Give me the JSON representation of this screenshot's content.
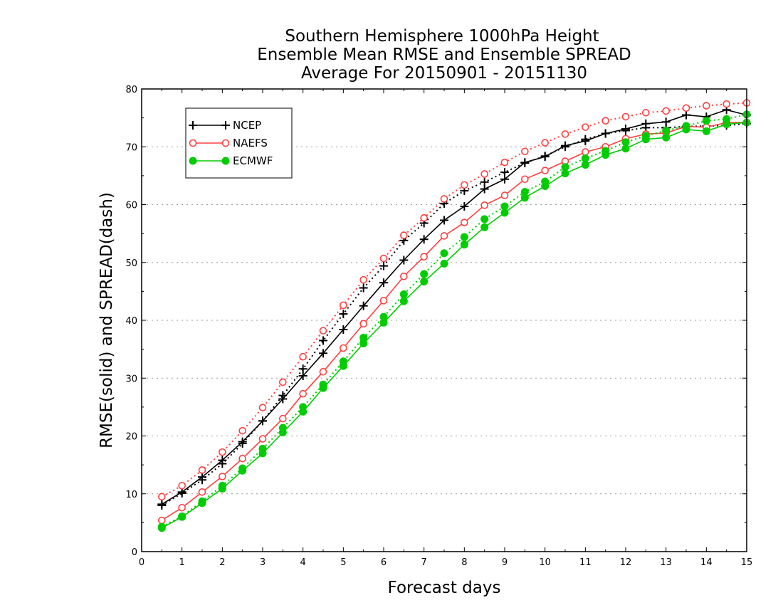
{
  "chart_data": {
    "type": "line",
    "title_lines": [
      "Southern Hemisphere 1000hPa Height",
      "Ensemble Mean RMSE and Ensemble SPREAD",
      "Average For 20150901 - 20151130"
    ],
    "xlabel": "Forecast days",
    "ylabel": "RMSE(solid) and SPREAD(dash)",
    "xlim": [
      0,
      15
    ],
    "ylim": [
      0,
      80
    ],
    "x_ticks": [
      "0",
      "1",
      "2",
      "3",
      "4",
      "5",
      "6",
      "7",
      "8",
      "9",
      "10",
      "11",
      "12",
      "13",
      "14",
      "15"
    ],
    "y_ticks": [
      "0",
      "10",
      "20",
      "30",
      "40",
      "50",
      "60",
      "70",
      "80"
    ],
    "grid": "horizontal-dotted",
    "legend_position": "top-left",
    "x": [
      0.5,
      1,
      1.5,
      2,
      2.5,
      3,
      3.5,
      4,
      4.5,
      5,
      5.5,
      6,
      6.5,
      7,
      7.5,
      8,
      8.5,
      9,
      9.5,
      10,
      10.5,
      11,
      11.5,
      12,
      12.5,
      13,
      13.5,
      14,
      14.5,
      15
    ],
    "series": [
      {
        "name": "NCEP",
        "color": "#000000",
        "marker": "plus",
        "rmse": [
          8.2,
          10.3,
          12.9,
          15.8,
          19.0,
          22.6,
          26.4,
          30.4,
          34.3,
          38.4,
          42.5,
          46.5,
          50.4,
          54.0,
          57.3,
          59.7,
          62.7,
          64.4,
          67.3,
          68.3,
          70.2,
          71.0,
          72.3,
          73.1,
          74.0,
          74.3,
          75.5,
          75.2,
          76.4,
          75.5
        ],
        "spread": [
          8.0,
          10.1,
          12.4,
          15.2,
          18.7,
          22.6,
          27.0,
          31.6,
          36.5,
          41.1,
          45.6,
          49.4,
          53.8,
          56.8,
          60.2,
          62.4,
          63.9,
          65.6,
          67.2,
          68.4,
          70.0,
          71.3,
          72.3,
          72.8,
          73.3,
          73.3,
          73.5,
          73.6,
          73.7,
          74.0
        ]
      },
      {
        "name": "NAEFS",
        "color": "#ff4040",
        "marker": "open-circle",
        "rmse": [
          5.4,
          7.6,
          10.3,
          13.0,
          16.1,
          19.5,
          23.0,
          27.3,
          31.1,
          35.2,
          39.4,
          43.4,
          47.6,
          51.0,
          54.6,
          56.9,
          59.9,
          61.6,
          64.4,
          65.9,
          67.5,
          69.1,
          70.0,
          71.4,
          72.2,
          72.4,
          73.5,
          73.4,
          74.2,
          74.2
        ],
        "spread": [
          9.5,
          11.4,
          14.1,
          17.2,
          20.9,
          24.9,
          29.3,
          33.7,
          38.2,
          42.6,
          47.0,
          50.7,
          54.7,
          57.7,
          61.0,
          63.4,
          65.3,
          67.3,
          69.2,
          70.7,
          72.2,
          73.4,
          74.5,
          75.2,
          75.9,
          76.2,
          76.7,
          77.1,
          77.4,
          77.6
        ]
      },
      {
        "name": "ECMWF",
        "color": "#00cc00",
        "marker": "filled-circle",
        "rmse": [
          4.1,
          6.0,
          8.4,
          10.9,
          14.0,
          17.0,
          20.6,
          24.2,
          28.3,
          32.1,
          36.0,
          39.6,
          43.3,
          46.7,
          49.8,
          53.1,
          56.1,
          58.6,
          61.2,
          63.2,
          65.4,
          66.9,
          68.6,
          69.7,
          71.3,
          71.6,
          73.0,
          72.7,
          73.9,
          74.2
        ],
        "spread": [
          4.3,
          6.1,
          8.7,
          11.4,
          14.4,
          17.8,
          21.4,
          25.0,
          28.9,
          32.9,
          37.0,
          40.6,
          44.5,
          48.0,
          51.6,
          54.4,
          57.5,
          59.7,
          62.2,
          64.0,
          66.5,
          68.0,
          69.3,
          70.8,
          71.9,
          72.8,
          73.6,
          74.5,
          74.8,
          75.6
        ]
      }
    ]
  }
}
